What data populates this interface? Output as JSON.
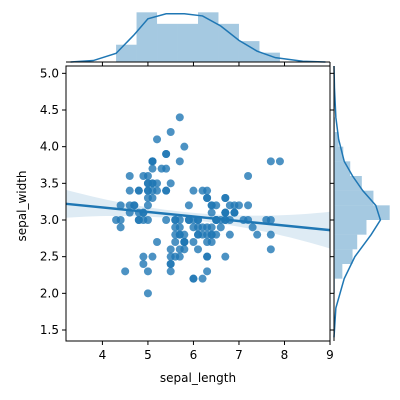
{
  "chart_data": {
    "type": "scatter",
    "title": "",
    "xlabel": "sepal_length",
    "ylabel": "sepal_width",
    "xlim": [
      3.2,
      9.0
    ],
    "ylim": [
      1.35,
      5.1
    ],
    "x_ticks": [
      4,
      5,
      6,
      7,
      8,
      9
    ],
    "x_tick_labels": [
      "4",
      "5",
      "6",
      "7",
      "8",
      "9"
    ],
    "y_ticks": [
      1.5,
      2.0,
      2.5,
      3.0,
      3.5,
      4.0,
      4.5,
      5.0
    ],
    "y_tick_labels": [
      "1.5",
      "2.0",
      "2.5",
      "3.0",
      "3.5",
      "4.0",
      "4.5",
      "5.0"
    ],
    "grid": false,
    "legend": "none",
    "colors": {
      "points": "#1f77b4",
      "regression_line": "#1f77b4",
      "confidence_band": "#1f77b4",
      "histogram": "#1f77b4"
    },
    "points": [
      [
        5.1,
        3.5
      ],
      [
        4.9,
        3.0
      ],
      [
        4.7,
        3.2
      ],
      [
        4.6,
        3.1
      ],
      [
        5.0,
        3.6
      ],
      [
        5.4,
        3.9
      ],
      [
        4.6,
        3.4
      ],
      [
        5.0,
        3.4
      ],
      [
        4.4,
        2.9
      ],
      [
        4.9,
        3.1
      ],
      [
        5.4,
        3.7
      ],
      [
        4.8,
        3.4
      ],
      [
        4.8,
        3.0
      ],
      [
        4.3,
        3.0
      ],
      [
        5.8,
        4.0
      ],
      [
        5.7,
        4.4
      ],
      [
        5.4,
        3.9
      ],
      [
        5.1,
        3.5
      ],
      [
        5.7,
        3.8
      ],
      [
        5.1,
        3.8
      ],
      [
        5.4,
        3.4
      ],
      [
        5.1,
        3.7
      ],
      [
        4.6,
        3.6
      ],
      [
        5.1,
        3.3
      ],
      [
        4.8,
        3.4
      ],
      [
        5.0,
        3.0
      ],
      [
        5.0,
        3.4
      ],
      [
        5.2,
        3.5
      ],
      [
        5.2,
        3.4
      ],
      [
        4.7,
        3.2
      ],
      [
        4.8,
        3.1
      ],
      [
        5.4,
        3.4
      ],
      [
        5.2,
        4.1
      ],
      [
        5.5,
        4.2
      ],
      [
        4.9,
        3.1
      ],
      [
        5.0,
        3.2
      ],
      [
        5.5,
        3.5
      ],
      [
        4.9,
        3.6
      ],
      [
        4.4,
        3.0
      ],
      [
        5.1,
        3.4
      ],
      [
        5.0,
        3.5
      ],
      [
        4.5,
        2.3
      ],
      [
        4.4,
        3.2
      ],
      [
        5.0,
        3.5
      ],
      [
        5.1,
        3.8
      ],
      [
        4.8,
        3.0
      ],
      [
        5.1,
        3.8
      ],
      [
        4.6,
        3.2
      ],
      [
        5.3,
        3.7
      ],
      [
        5.0,
        3.3
      ],
      [
        7.0,
        3.2
      ],
      [
        6.4,
        3.2
      ],
      [
        6.9,
        3.1
      ],
      [
        5.5,
        2.3
      ],
      [
        6.5,
        2.8
      ],
      [
        5.7,
        2.8
      ],
      [
        6.3,
        3.3
      ],
      [
        4.9,
        2.4
      ],
      [
        6.6,
        2.9
      ],
      [
        5.2,
        2.7
      ],
      [
        5.0,
        2.0
      ],
      [
        5.9,
        3.0
      ],
      [
        6.0,
        2.2
      ],
      [
        6.1,
        2.9
      ],
      [
        5.6,
        2.9
      ],
      [
        6.7,
        3.1
      ],
      [
        5.6,
        3.0
      ],
      [
        5.8,
        2.7
      ],
      [
        6.2,
        2.2
      ],
      [
        5.6,
        2.5
      ],
      [
        5.9,
        3.2
      ],
      [
        6.1,
        2.8
      ],
      [
        6.3,
        2.5
      ],
      [
        6.1,
        2.8
      ],
      [
        6.4,
        2.9
      ],
      [
        6.6,
        3.0
      ],
      [
        6.8,
        2.8
      ],
      [
        6.7,
        3.0
      ],
      [
        6.0,
        2.9
      ],
      [
        5.7,
        2.6
      ],
      [
        5.5,
        2.4
      ],
      [
        5.5,
        2.4
      ],
      [
        5.8,
        2.7
      ],
      [
        6.0,
        2.7
      ],
      [
        5.4,
        3.0
      ],
      [
        6.0,
        3.4
      ],
      [
        6.7,
        3.1
      ],
      [
        6.3,
        2.3
      ],
      [
        5.6,
        3.0
      ],
      [
        5.5,
        2.5
      ],
      [
        5.5,
        2.6
      ],
      [
        6.1,
        3.0
      ],
      [
        5.8,
        2.6
      ],
      [
        5.0,
        2.3
      ],
      [
        5.6,
        2.7
      ],
      [
        5.7,
        3.0
      ],
      [
        5.7,
        2.9
      ],
      [
        6.2,
        2.9
      ],
      [
        5.1,
        2.5
      ],
      [
        5.7,
        2.8
      ],
      [
        6.3,
        3.3
      ],
      [
        5.8,
        2.7
      ],
      [
        7.1,
        3.0
      ],
      [
        6.3,
        2.9
      ],
      [
        6.5,
        3.0
      ],
      [
        7.6,
        3.0
      ],
      [
        4.9,
        2.5
      ],
      [
        7.3,
        2.9
      ],
      [
        6.7,
        2.5
      ],
      [
        7.2,
        3.6
      ],
      [
        6.5,
        3.2
      ],
      [
        6.4,
        2.7
      ],
      [
        6.8,
        3.0
      ],
      [
        5.7,
        2.5
      ],
      [
        5.8,
        2.8
      ],
      [
        6.4,
        3.2
      ],
      [
        6.5,
        3.0
      ],
      [
        7.7,
        3.8
      ],
      [
        7.7,
        2.6
      ],
      [
        6.0,
        2.2
      ],
      [
        6.9,
        3.2
      ],
      [
        5.6,
        2.8
      ],
      [
        7.7,
        2.8
      ],
      [
        6.3,
        2.7
      ],
      [
        6.7,
        3.3
      ],
      [
        7.2,
        3.2
      ],
      [
        6.2,
        2.8
      ],
      [
        6.1,
        3.0
      ],
      [
        6.4,
        2.8
      ],
      [
        7.2,
        3.0
      ],
      [
        7.4,
        2.8
      ],
      [
        7.9,
        3.8
      ],
      [
        6.4,
        2.8
      ],
      [
        6.3,
        2.8
      ],
      [
        6.1,
        2.6
      ],
      [
        7.7,
        3.0
      ],
      [
        6.3,
        3.4
      ],
      [
        6.4,
        3.1
      ],
      [
        6.0,
        3.0
      ],
      [
        6.9,
        3.1
      ],
      [
        6.7,
        3.1
      ],
      [
        6.9,
        3.1
      ],
      [
        5.8,
        2.7
      ],
      [
        6.8,
        3.2
      ],
      [
        6.7,
        3.3
      ],
      [
        6.7,
        3.0
      ],
      [
        6.3,
        2.5
      ],
      [
        6.5,
        3.0
      ],
      [
        6.2,
        3.4
      ],
      [
        5.9,
        3.0
      ]
    ],
    "regression": {
      "intercept": 3.4189,
      "slope": -0.0619,
      "x_range": [
        3.2,
        9.0
      ],
      "band_halfwidth_at_mean": 0.05,
      "band_halfwidth_at_edges": 0.25
    },
    "x_marginal": {
      "bin_edges": [
        4.3,
        4.75,
        5.2,
        5.65,
        6.1,
        6.55,
        7.0,
        7.45,
        7.9
      ],
      "density": [
        0.24,
        0.69,
        0.53,
        0.53,
        0.69,
        0.53,
        0.29,
        0.13
      ]
    },
    "y_marginal": {
      "bin_edges": [
        2.0,
        2.2,
        2.4,
        2.6,
        2.8,
        3.0,
        3.2,
        3.4,
        3.6,
        3.8,
        4.0,
        4.2,
        4.4
      ],
      "density": [
        0.02,
        0.18,
        0.4,
        0.5,
        0.7,
        1.2,
        0.85,
        0.6,
        0.35,
        0.2,
        0.1,
        0.02
      ]
    }
  }
}
